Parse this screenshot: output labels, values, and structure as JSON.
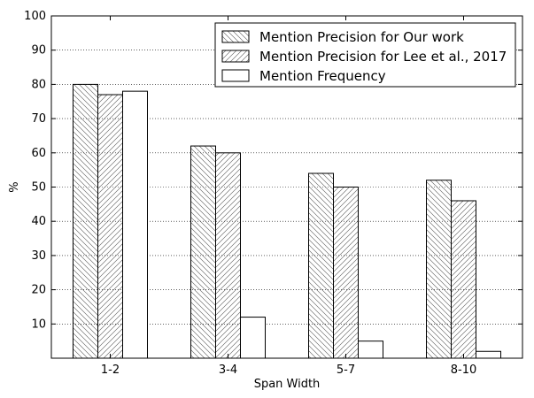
{
  "chart_data": {
    "type": "bar",
    "title": "",
    "xlabel": "Span Width",
    "ylabel": "%",
    "ylim": [
      0,
      100
    ],
    "yticks": [
      10,
      20,
      30,
      40,
      50,
      60,
      70,
      80,
      90,
      100
    ],
    "categories": [
      "1-2",
      "3-4",
      "5-7",
      "8-10"
    ],
    "grid": "horizontal dotted",
    "legend_position": "top-right",
    "series": [
      {
        "name": "Mention Precision for Our work",
        "values": [
          80,
          62,
          54,
          52
        ],
        "pattern": "backslash-hatch"
      },
      {
        "name": "Mention Precision for Lee et al., 2017",
        "values": [
          77,
          60,
          50,
          46
        ],
        "pattern": "slash-hatch"
      },
      {
        "name": "Mention Frequency",
        "values": [
          78,
          12,
          5,
          2
        ],
        "pattern": "none"
      }
    ],
    "colors": {
      "bar_fill": "#ffffff",
      "bar_edge": "#000000",
      "grid": "#000000"
    }
  }
}
